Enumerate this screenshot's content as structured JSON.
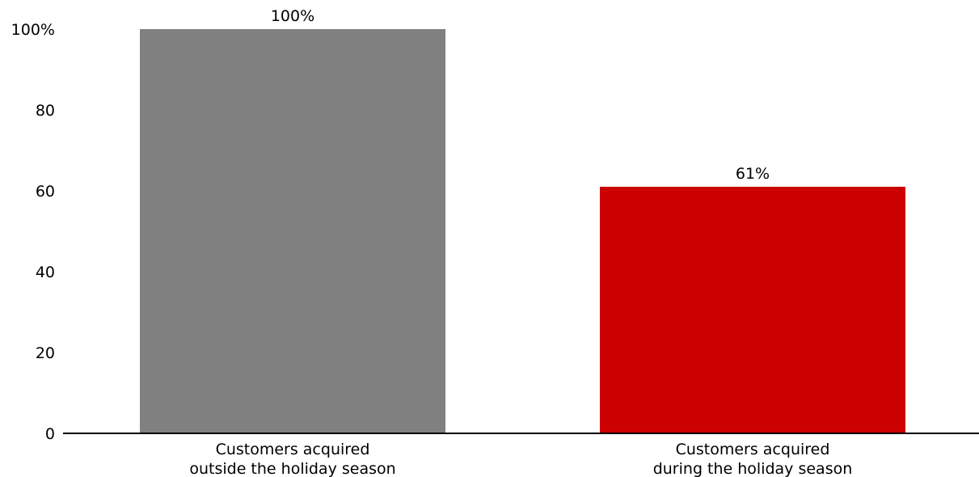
{
  "chart_data": {
    "type": "bar",
    "categories": [
      [
        "Customers acquired",
        "outside the holiday season"
      ],
      [
        "Customers acquired",
        "during the holiday season"
      ]
    ],
    "values": [
      100,
      61
    ],
    "data_labels": [
      "100%",
      "61%"
    ],
    "bar_colors": [
      "#808080",
      "#cc0000"
    ],
    "ylim": [
      0,
      100
    ],
    "y_ticks": [
      0,
      20,
      40,
      60,
      80,
      100
    ],
    "y_tick_labels": [
      "0",
      "20",
      "40",
      "60",
      "80",
      "100%"
    ],
    "title": "",
    "xlabel": "",
    "ylabel": "",
    "grid": false
  }
}
